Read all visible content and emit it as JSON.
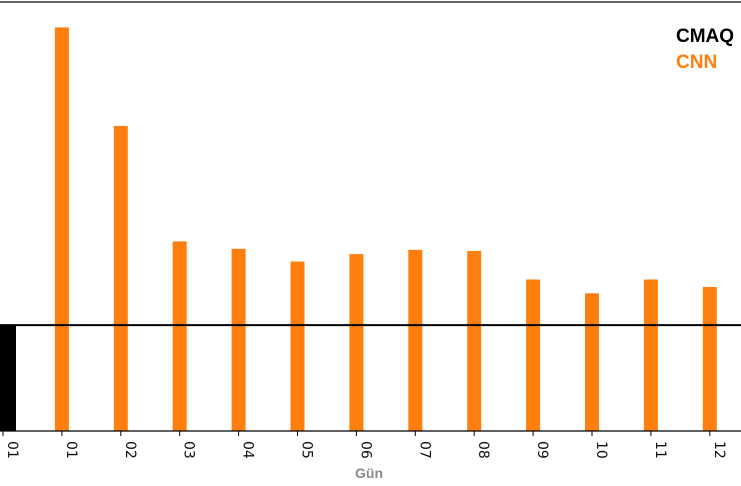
{
  "chart_data": {
    "type": "bar",
    "xlabel": "Gün",
    "ylabel": "",
    "categories": [
      "01",
      "01",
      "02",
      "03",
      "04",
      "05",
      "06",
      "07",
      "08",
      "09",
      "10",
      "11",
      "12"
    ],
    "series": [
      {
        "name": "CMAQ",
        "color": "#000000",
        "values": [
          1.0,
          null,
          null,
          null,
          null,
          null,
          null,
          null,
          null,
          null,
          null,
          null,
          null
        ]
      },
      {
        "name": "CNN",
        "color": "#ff7f0e",
        "values": [
          null,
          3.81,
          2.88,
          1.79,
          1.72,
          1.6,
          1.67,
          1.71,
          1.7,
          1.43,
          1.3,
          1.43,
          1.36
        ]
      }
    ],
    "reference_line": {
      "value": 1.0,
      "color": "#000000"
    },
    "ylim": [
      0,
      4.05
    ],
    "y_ticks_shown": false,
    "grid": false,
    "legend_placement": "top-right"
  }
}
